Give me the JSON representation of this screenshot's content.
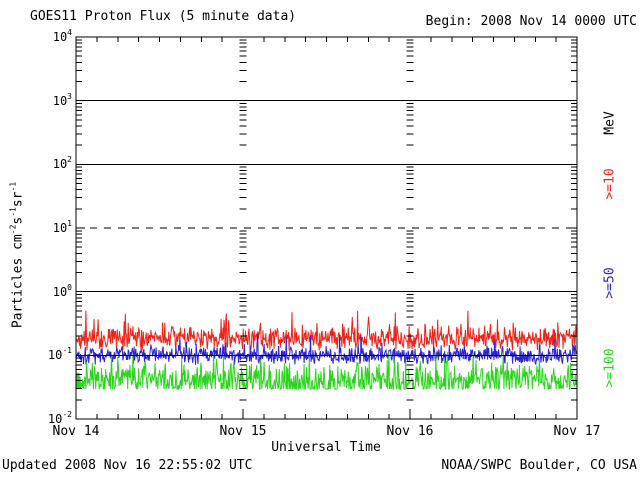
{
  "window": {
    "bg": "#ffffff",
    "fg": "#000000"
  },
  "header": {
    "title": "GOES11 Proton Flux (5 minute data)",
    "begin": "Begin: 2008 Nov 14 0000 UTC"
  },
  "footer": {
    "updated": "Updated 2008 Nov 16 22:55:02 UTC",
    "credit": "NOAA/SWPC Boulder, CO USA"
  },
  "chart_data": {
    "type": "line",
    "title": "GOES11 Proton Flux (5 minute data)",
    "subtitle": "Begin: 2008 Nov 14 0000 UTC",
    "xlabel": "Universal Time",
    "ylabel": "Particles cm^-2 s^-1 sr^-1",
    "ylabel_segments": [
      {
        "t": "Particles cm"
      },
      {
        "s": "-2"
      },
      {
        "t": "s"
      },
      {
        "s": "-1"
      },
      {
        "t": "sr"
      },
      {
        "s": "-1"
      }
    ],
    "y_scale": "log",
    "ylim": [
      0.01,
      10000
    ],
    "y_tick_exponents": [
      4,
      3,
      2,
      1,
      0,
      -1,
      -2
    ],
    "x_tick_labels": [
      "Nov 14",
      "Nov 15",
      "Nov 16",
      "Nov 17"
    ],
    "days": 3,
    "points_per_day": 288,
    "x_minor_per_day": 8,
    "grid_solid_exponents": [
      3,
      2,
      0,
      -1
    ],
    "grid_dashed_exponents": [
      1
    ],
    "interior_day_tick_columns": [
      1,
      2
    ],
    "legend_position": "right",
    "units_label": "MeV",
    "series": [
      {
        "name": "proton-flux-ge10MeV",
        "label": ">=10",
        "color": "#ef2317",
        "typical_flux": 0.19,
        "flux_range": [
          0.12,
          0.5
        ],
        "gen": {
          "base": -0.74,
          "amp": 0.13,
          "spike_p": 0.1,
          "spike_mag": 0.35,
          "clamp": [
            -0.93,
            -0.3
          ],
          "seed": 42
        }
      },
      {
        "name": "proton-flux-ge50MeV",
        "label": ">=50",
        "color": "#2a23cf",
        "typical_flux": 0.1,
        "flux_range": [
          0.066,
          0.25
        ],
        "gen": {
          "base": -1.0,
          "amp": 0.1,
          "spike_p": 0.08,
          "spike_mag": 0.3,
          "clamp": [
            -1.18,
            -0.62
          ],
          "seed": 1337
        }
      },
      {
        "name": "proton-flux-ge100MeV",
        "label": ">=100",
        "color": "#2ed321",
        "typical_flux": 0.045,
        "flux_range": [
          0.03,
          0.11
        ],
        "gen": {
          "base": -1.4,
          "amp": 0.22,
          "spike_p": 0.1,
          "spike_mag": 0.35,
          "clamp": [
            -1.53,
            -0.95
          ],
          "seed": 2024
        }
      }
    ]
  }
}
